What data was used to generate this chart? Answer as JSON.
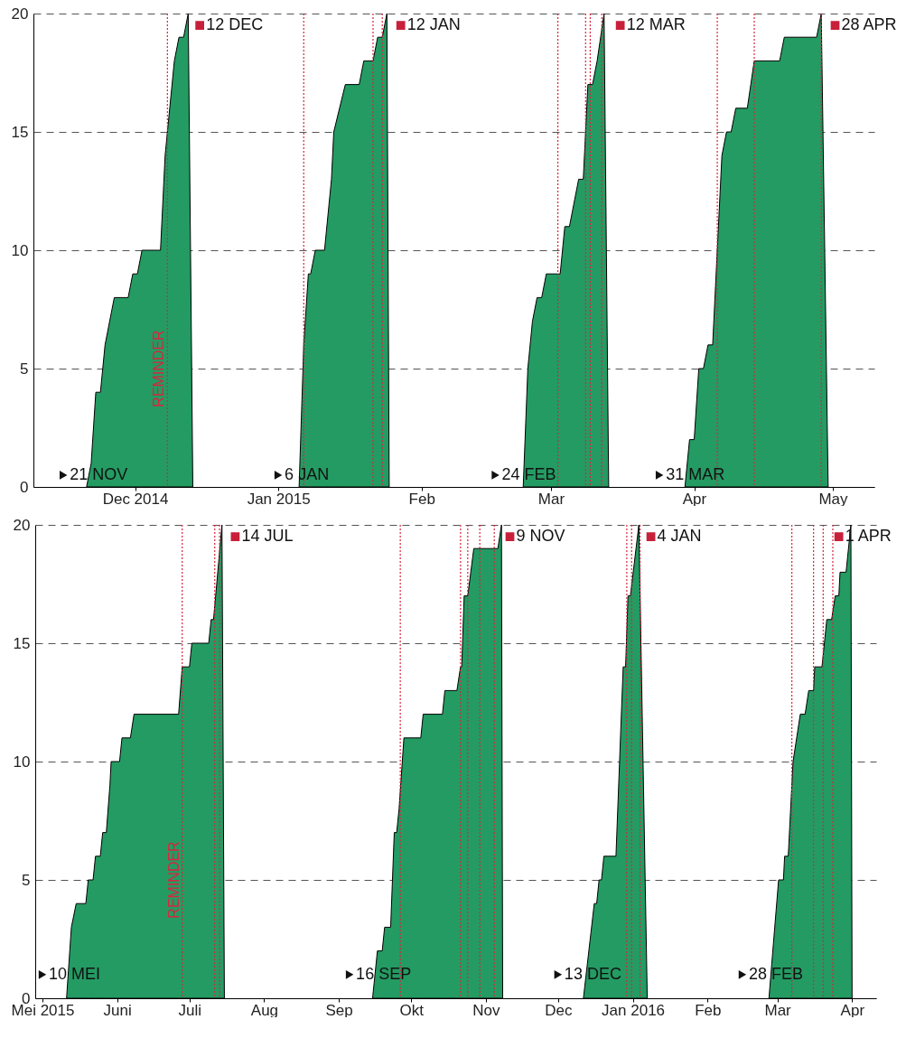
{
  "chart_data": [
    {
      "type": "area",
      "xlim": [
        "2014-11-09",
        "2015-05-10"
      ],
      "ylim": [
        0,
        20
      ],
      "yticks": [
        0,
        5,
        10,
        15,
        20
      ],
      "grid": "y",
      "xticks": [
        {
          "value": "2014-12-01",
          "label": "Dec 2014"
        },
        {
          "value": "2015-01-01",
          "label": "Jan 2015"
        },
        {
          "value": "2015-02-01",
          "label": "Feb"
        },
        {
          "value": "2015-03-01",
          "label": "Mar"
        },
        {
          "value": "2015-04-01",
          "label": "Apr"
        },
        {
          "value": "2015-05-01",
          "label": "May"
        }
      ],
      "series": [
        {
          "color": "#249b63",
          "x": [
            "2014-11-20T12:00",
            "2014-11-21T12:00",
            "2014-11-22T12:00",
            "2014-11-23T12:00",
            "2014-11-24T12:00",
            "2014-11-26T12:00",
            "2014-11-29T12:00",
            "2014-11-30T12:00",
            "2014-12-01T12:00",
            "2014-12-02T12:00",
            "2014-12-06T12:00",
            "2014-12-07T12:00",
            "2014-12-09T12:00",
            "2014-12-10T12:00",
            "2014-12-11T12:00",
            "2014-12-12T12:00",
            "2014-12-13T12:00"
          ],
          "values": [
            0,
            1,
            4,
            4,
            6,
            8,
            8,
            9,
            9,
            10,
            10,
            14,
            18,
            19,
            19,
            20,
            0
          ]
        },
        {
          "color": "#249b63",
          "x": [
            "2015-01-05T12:00",
            "2015-01-06T12:00",
            "2015-01-07T12:00",
            "2015-01-08",
            "2015-01-09",
            "2015-01-11",
            "2015-01-12T12:00",
            "2015-01-13",
            "2015-01-15T12:00",
            "2015-01-18T12:00",
            "2015-01-19T12:00",
            "2015-01-21T12:00",
            "2015-01-22T12:00",
            "2015-01-23T12:00",
            "2015-01-24T12:00",
            "2015-01-25"
          ],
          "values": [
            0,
            6,
            9,
            9,
            10,
            10,
            13,
            15,
            17,
            17,
            18,
            18,
            19,
            19,
            20,
            0
          ]
        },
        {
          "color": "#249b63",
          "x": [
            "2015-02-23",
            "2015-02-24",
            "2015-02-25",
            "2015-02-26",
            "2015-02-27",
            "2015-02-28",
            "2015-03-03",
            "2015-03-04",
            "2015-03-05",
            "2015-03-07",
            "2015-03-08",
            "2015-03-09",
            "2015-03-10",
            "2015-03-11",
            "2015-03-12T12:00",
            "2015-03-13T12:00"
          ],
          "values": [
            0,
            5,
            7,
            8,
            8,
            9,
            9,
            11,
            11,
            13,
            13,
            17,
            17,
            18,
            20,
            0
          ]
        },
        {
          "color": "#249b63",
          "x": [
            "2015-03-30",
            "2015-03-31",
            "2015-04-01",
            "2015-04-02",
            "2015-04-03",
            "2015-04-04",
            "2015-04-05",
            "2015-04-06",
            "2015-04-07",
            "2015-04-08",
            "2015-04-09",
            "2015-04-10",
            "2015-04-12T12:00",
            "2015-04-14",
            "2015-04-19T12:00",
            "2015-04-20T12:00",
            "2015-04-27T12:00",
            "2015-04-28T12:00",
            "2015-04-30"
          ],
          "values": [
            0,
            2,
            2,
            5,
            5,
            6,
            6,
            10,
            14,
            15,
            15,
            16,
            16,
            18,
            18,
            19,
            19,
            20,
            0
          ]
        }
      ],
      "ref_lines": [
        {
          "axis": "x",
          "value": "2014-12-08",
          "label": "REMINDER",
          "color": "#d7263d",
          "line_style": "dotted"
        },
        {
          "axis": "x",
          "value": "2015-01-06T12:00",
          "color": "#d7263d",
          "line_style": "dotted"
        },
        {
          "axis": "x",
          "value": "2015-01-21T12:00",
          "color": "#d7263d",
          "line_style": "dotted"
        },
        {
          "axis": "x",
          "value": "2015-01-23T12:00",
          "color": "#d7263d",
          "line_style": "dotted"
        },
        {
          "axis": "x",
          "value": "2015-03-02T12:00",
          "color": "#d7263d",
          "line_style": "dotted"
        },
        {
          "axis": "x",
          "value": "2015-03-08T12:00",
          "color": "#d7263d",
          "line_style": "dotted"
        },
        {
          "axis": "x",
          "value": "2015-03-09T12:00",
          "color": "#d7263d",
          "line_style": "dotted"
        },
        {
          "axis": "x",
          "value": "2015-03-12",
          "color": "#d7263d",
          "line_style": "dotted"
        },
        {
          "axis": "x",
          "value": "2015-04-06",
          "color": "#d7263d",
          "line_style": "dotted"
        },
        {
          "axis": "x",
          "value": "2015-04-14",
          "color": "#d7263d",
          "line_style": "dotted"
        },
        {
          "axis": "x",
          "value": "2015-04-28T12:00",
          "color": "#d7263d",
          "line_style": "dotted"
        }
      ],
      "annotations": [
        {
          "text": "21 NOV",
          "x": "2014-11-15T12:00",
          "y": 0.5
        },
        {
          "text": "12 DEC",
          "x": "2014-12-15",
          "y": 19.5
        },
        {
          "text": "6 JAN",
          "x": "2015-01-01",
          "y": 0.5
        },
        {
          "text": "12 JAN",
          "x": "2015-01-27T12:00",
          "y": 19.5
        },
        {
          "text": "24 FEB",
          "x": "2015-02-17",
          "y": 0.5
        },
        {
          "text": "12 MAR",
          "x": "2015-03-16",
          "y": 19.5
        },
        {
          "text": "31 MAR",
          "x": "2015-03-24T12:00",
          "y": 0.5
        },
        {
          "text": "28 APR",
          "x": "2015-05-01T12:00",
          "y": 19.5
        }
      ]
    },
    {
      "type": "area",
      "xlim": [
        "2015-04-28",
        "2016-04-11"
      ],
      "ylim": [
        0,
        20
      ],
      "yticks": [
        0,
        5,
        10,
        15,
        20
      ],
      "grid": "y",
      "xticks": [
        {
          "value": "2015-05-01",
          "label": "Mei 2015"
        },
        {
          "value": "2015-06-01",
          "label": "Juni"
        },
        {
          "value": "2015-07-01",
          "label": "Juli"
        },
        {
          "value": "2015-08-01",
          "label": "Aug"
        },
        {
          "value": "2015-09-01",
          "label": "Sep"
        },
        {
          "value": "2015-10-01",
          "label": "Okt"
        },
        {
          "value": "2015-11-01",
          "label": "Nov"
        },
        {
          "value": "2015-12-01",
          "label": "Dec"
        },
        {
          "value": "2016-01-01",
          "label": "Jan 2016"
        },
        {
          "value": "2016-02-01",
          "label": "Feb"
        },
        {
          "value": "2016-03-01",
          "label": "Mar"
        },
        {
          "value": "2016-04-01",
          "label": "Apr"
        }
      ],
      "series": [
        {
          "color": "#249b63",
          "x": [
            "2015-05-11",
            "2015-05-13",
            "2015-05-15",
            "2015-05-19",
            "2015-05-20",
            "2015-05-22",
            "2015-05-23",
            "2015-05-25",
            "2015-05-26",
            "2015-05-27T12:00",
            "2015-05-29",
            "2015-05-29T12:00",
            "2015-06-02",
            "2015-06-03",
            "2015-06-06T12:00",
            "2015-06-08",
            "2015-06-26T12:00",
            "2015-06-28",
            "2015-07-01",
            "2015-07-02",
            "2015-07-09",
            "2015-07-10",
            "2015-07-11",
            "2015-07-14T12:00",
            "2015-07-15T12:00"
          ],
          "values": [
            0,
            3,
            4,
            4,
            5,
            5,
            6,
            6,
            7,
            7,
            9,
            10,
            10,
            11,
            11,
            12,
            12,
            14,
            14,
            15,
            15,
            16,
            16,
            20,
            0
          ]
        },
        {
          "color": "#249b63",
          "x": [
            "2015-09-15",
            "2015-09-17",
            "2015-09-19",
            "2015-09-20",
            "2015-09-22T12:00",
            "2015-09-24",
            "2015-09-25",
            "2015-09-26",
            "2015-09-28",
            "2015-10-05",
            "2015-10-06",
            "2015-10-14",
            "2015-10-15",
            "2015-10-20",
            "2015-10-21T12:00",
            "2015-10-22",
            "2015-10-23",
            "2015-10-24T12:00",
            "2015-10-27",
            "2015-11-06",
            "2015-11-07T12:00",
            "2015-11-08"
          ],
          "values": [
            0,
            2,
            2,
            3,
            3,
            7,
            7,
            8,
            11,
            11,
            12,
            12,
            13,
            13,
            14,
            14,
            17,
            17,
            19,
            19,
            20,
            0
          ]
        },
        {
          "color": "#249b63",
          "x": [
            "2015-12-11T12:00",
            "2015-12-16",
            "2015-12-17",
            "2015-12-18",
            "2015-12-19",
            "2015-12-20",
            "2015-12-25",
            "2015-12-28",
            "2015-12-29",
            "2015-12-30",
            "2015-12-31",
            "2016-01-03T12:00",
            "2016-01-07"
          ],
          "values": [
            0,
            4,
            4,
            5,
            5,
            6,
            6,
            14,
            14,
            17,
            17,
            20,
            0
          ]
        },
        {
          "color": "#249b63",
          "x": [
            "2016-02-26T12:00",
            "2016-03-01T12:00",
            "2016-03-03T12:00",
            "2016-03-04",
            "2016-03-05T12:00",
            "2016-03-07T12:00",
            "2016-03-10T12:00",
            "2016-03-12T12:00",
            "2016-03-14",
            "2016-03-16",
            "2016-03-16T12:00",
            "2016-03-19T12:00",
            "2016-03-21T12:00",
            "2016-03-23T12:00",
            "2016-03-25",
            "2016-03-26T12:00",
            "2016-03-27",
            "2016-03-29T12:00",
            "2016-03-31T12:00",
            "2016-04-01"
          ],
          "values": [
            0,
            5,
            5,
            6,
            6,
            10,
            12,
            12,
            13,
            13,
            14,
            14,
            16,
            16,
            17,
            17,
            18,
            18,
            20,
            0
          ]
        }
      ],
      "ref_lines": [
        {
          "axis": "x",
          "value": "2015-06-28",
          "label": "REMINDER",
          "color": "#d7263d",
          "line_style": "dotted"
        },
        {
          "axis": "x",
          "value": "2015-07-11T12:00",
          "color": "#d7263d",
          "line_style": "dotted"
        },
        {
          "axis": "x",
          "value": "2015-07-13T12:00",
          "color": "#d7263d",
          "line_style": "dotted"
        },
        {
          "axis": "x",
          "value": "2015-09-26T12:00",
          "color": "#d7263d",
          "line_style": "dotted"
        },
        {
          "axis": "x",
          "value": "2015-10-21T12:00",
          "color": "#d7263d",
          "line_style": "dotted"
        },
        {
          "axis": "x",
          "value": "2015-10-24T12:00",
          "color": "#d7263d",
          "line_style": "dotted"
        },
        {
          "axis": "x",
          "value": "2015-10-29T12:00",
          "color": "#d7263d",
          "line_style": "dotted"
        },
        {
          "axis": "x",
          "value": "2015-11-04T12:00",
          "color": "#d7263d",
          "line_style": "dotted"
        },
        {
          "axis": "x",
          "value": "2015-12-29T12:00",
          "color": "#d7263d",
          "line_style": "dotted"
        },
        {
          "axis": "x",
          "value": "2015-12-31T12:00",
          "color": "#d7263d",
          "line_style": "dotted"
        },
        {
          "axis": "x",
          "value": "2016-01-04",
          "color": "#d7263d",
          "line_style": "dotted"
        },
        {
          "axis": "x",
          "value": "2016-03-07",
          "color": "#d7263d",
          "line_style": "dotted"
        },
        {
          "axis": "x",
          "value": "2016-03-16",
          "color": "#d7263d",
          "line_style": "dotted"
        },
        {
          "axis": "x",
          "value": "2016-03-20",
          "color": "#d7263d",
          "line_style": "dotted"
        },
        {
          "axis": "x",
          "value": "2016-03-24",
          "color": "#d7263d",
          "line_style": "dotted"
        }
      ],
      "annotations": [
        {
          "text": "10 MEI",
          "x": "2015-05-01",
          "y": 1
        },
        {
          "text": "14 JUL",
          "x": "2015-07-20",
          "y": 19.5
        },
        {
          "text": "16 SEP",
          "x": "2015-09-05T12:00",
          "y": 1
        },
        {
          "text": "9 NOV",
          "x": "2015-11-11",
          "y": 19.5
        },
        {
          "text": "13 DEC",
          "x": "2015-12-01",
          "y": 1
        },
        {
          "text": "4 JAN",
          "x": "2016-01-08T12:00",
          "y": 19.5
        },
        {
          "text": "28 FEB",
          "x": "2016-02-15T12:00",
          "y": 1
        },
        {
          "text": "1 APR",
          "x": "2016-03-26T12:00",
          "y": 19.5
        }
      ]
    }
  ]
}
